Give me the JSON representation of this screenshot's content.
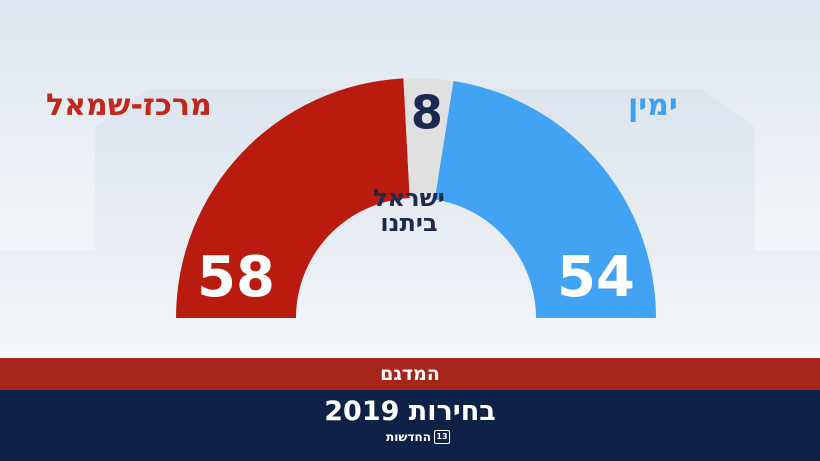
{
  "chart_data": {
    "type": "pie",
    "subtype": "half-donut",
    "categories": [
      "מרכז-שמאל",
      "ישראל ביתנו",
      "ימין"
    ],
    "values": [
      58,
      8,
      54
    ],
    "colors": [
      "#b91c0f",
      "#e0e0e0",
      "#42a2f4"
    ],
    "value_labels": [
      "58",
      "8",
      "54"
    ],
    "labels": {
      "left": "מרכז-שמאל",
      "right": "ימין",
      "middle_line1": "ישראל",
      "middle_line2": "ביתנו"
    },
    "label_colors": {
      "left": "#c0281c",
      "right": "#3e9ff0",
      "middle": "#1b2a4e"
    }
  },
  "footer": {
    "poll": "המדגם",
    "election": "בחירות 2019",
    "channel": "החדשות",
    "channel_number": "13"
  }
}
